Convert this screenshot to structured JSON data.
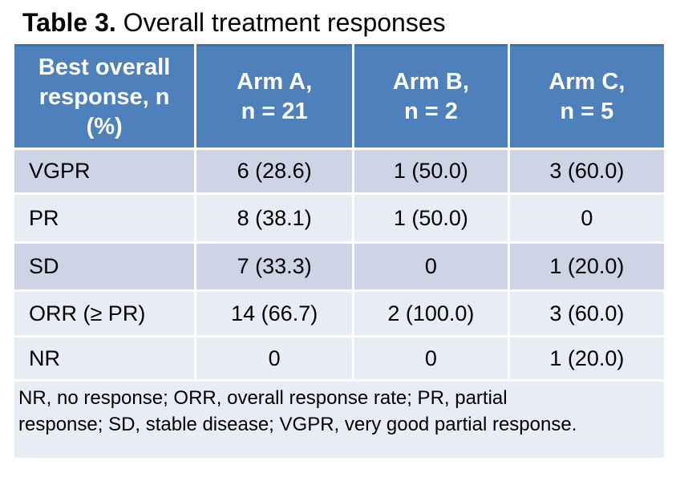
{
  "title": {
    "bold": "Table 3.",
    "rest": " Overall treatment responses"
  },
  "colors": {
    "header_bg": "#4E80BC",
    "header_top_line": "#3E70AB",
    "row_dark": "#CDD4E6",
    "row_light": "#E8ECF4",
    "header_text": "#FFFFFF",
    "body_text": "#000000",
    "page_bg": "#FFFFFF"
  },
  "table": {
    "header": [
      {
        "line1": "Best overall",
        "line2": "response, n",
        "line3": "(%)"
      },
      {
        "line1": "Arm A,",
        "line2": "n = 21"
      },
      {
        "line1": "Arm B,",
        "line2": "n = 2"
      },
      {
        "line1": "Arm C,",
        "line2": "n = 5"
      }
    ],
    "rows": [
      {
        "label": "VGPR",
        "arm_a": "6 (28.6)",
        "arm_b": "1 (50.0)",
        "arm_c": "3 (60.0)"
      },
      {
        "label": "PR",
        "arm_a": "8 (38.1)",
        "arm_b": "1 (50.0)",
        "arm_c": "0"
      },
      {
        "label": "SD",
        "arm_a": "7 (33.3)",
        "arm_b": "0",
        "arm_c": "1 (20.0)"
      },
      {
        "label": "ORR (≥ PR)",
        "arm_a": "14 (66.7)",
        "arm_b": "2 (100.0)",
        "arm_c": "3 (60.0)"
      },
      {
        "label": "NR",
        "arm_a": "0",
        "arm_b": "0",
        "arm_c": "1 (20.0)"
      }
    ],
    "footnote": {
      "line1": "NR, no response; ORR, overall response rate; PR, partial",
      "line2": "response; SD, stable disease; VGPR, very good partial response."
    }
  }
}
